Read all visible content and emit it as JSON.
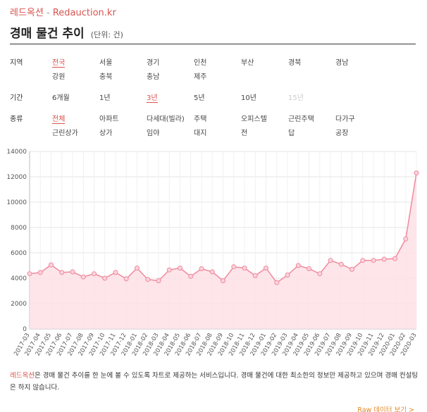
{
  "header": {
    "site_name": "레드옥션",
    "separator": "-",
    "domain": "Redauction.kr"
  },
  "page": {
    "title": "경매 물건 추이",
    "unit": "(단위: 건)"
  },
  "filters": {
    "region": {
      "label": "지역",
      "options": [
        "전국",
        "서울",
        "경기",
        "인천",
        "부산",
        "경북",
        "경남",
        "강원",
        "충북",
        "충남",
        "제주"
      ],
      "selected": "전국"
    },
    "period": {
      "label": "기간",
      "options": [
        "6개월",
        "1년",
        "3년",
        "5년",
        "10년",
        "15년"
      ],
      "selected": "3년",
      "disabled": [
        "15년"
      ]
    },
    "type": {
      "label": "종류",
      "options": [
        "전체",
        "아파트",
        "다세대(빌라)",
        "주택",
        "오피스텔",
        "근린주택",
        "다가구",
        "근린상가",
        "상가",
        "임야",
        "대지",
        "전",
        "답",
        "공장"
      ],
      "selected": "전체"
    }
  },
  "colors": {
    "accent": "#d9534f",
    "line": "#ef8a9c",
    "fill": "#fde0e6",
    "link": "#e08a2c"
  },
  "chart_data": {
    "type": "area",
    "x": [
      "2017-03",
      "2017-04",
      "2017-05",
      "2017-06",
      "2017-07",
      "2017-08",
      "2017-09",
      "2017-10",
      "2017-11",
      "2017-12",
      "2018-01",
      "2018-02",
      "2018-03",
      "2018-04",
      "2018-05",
      "2018-06",
      "2018-07",
      "2018-08",
      "2018-09",
      "2018-10",
      "2018-11",
      "2018-12",
      "2019-01",
      "2019-02",
      "2019-03",
      "2019-04",
      "2019-05",
      "2019-06",
      "2019-07",
      "2019-08",
      "2019-09",
      "2019-10",
      "2019-11",
      "2019-12",
      "2020-01",
      "2020-02",
      "2020-03"
    ],
    "values": [
      4350,
      4450,
      5050,
      4450,
      4500,
      4100,
      4350,
      4000,
      4450,
      3950,
      4800,
      3900,
      3800,
      4650,
      4800,
      4150,
      4750,
      4500,
      3800,
      4900,
      4800,
      4200,
      4800,
      3650,
      4250,
      5000,
      4750,
      4350,
      5400,
      5100,
      4700,
      5400,
      5400,
      5500,
      5550,
      7100,
      12300
    ],
    "ylim": [
      0,
      14000
    ],
    "yticks": [
      0,
      2000,
      4000,
      6000,
      8000,
      10000,
      12000,
      14000
    ],
    "grid": true,
    "legend": "none"
  },
  "footer": {
    "note_brand": "레드옥션",
    "note_text": "은 경매 물건 추이를 한 눈에 볼 수 있도록 차트로 제공하는 서비스입니다. 경매 물건에 대한 최소한의 정보만 제공하고 있으며 경매 컨설팅은 하지 않습니다.",
    "raw_link": "Raw 데이터 보기 >"
  }
}
